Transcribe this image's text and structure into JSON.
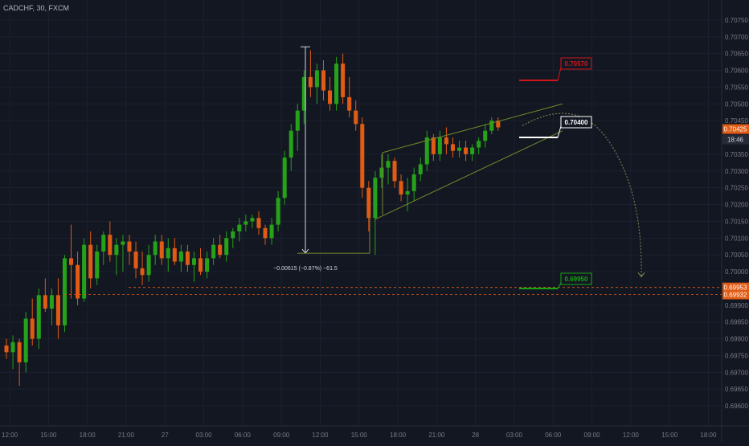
{
  "symbol_title": "CADCHF, 30, FXCM",
  "colors": {
    "background": "#131722",
    "grid": "#1c2030",
    "up": "#26a11a",
    "down": "#e05b14",
    "axis_text": "#787b86",
    "target_red": "#d1151c",
    "target_green": "#17a413",
    "pattern_line": "#6f8a2a"
  },
  "chart_data": {
    "type": "candlestick",
    "title": "CADCHF, 30, FXCM",
    "ylim": [
      0.6955,
      0.708
    ],
    "y_ticks": [
      {
        "value": 0.7075,
        "label": "0.70750"
      },
      {
        "value": 0.707,
        "label": "0.70700"
      },
      {
        "value": 0.7065,
        "label": "0.70650"
      },
      {
        "value": 0.706,
        "label": "0.70600"
      },
      {
        "value": 0.7055,
        "label": "0.70550"
      },
      {
        "value": 0.705,
        "label": "0.70500"
      },
      {
        "value": 0.7045,
        "label": "0.70450"
      },
      {
        "value": 0.7035,
        "label": "0.70350"
      },
      {
        "value": 0.703,
        "label": "0.70300"
      },
      {
        "value": 0.7025,
        "label": "0.70250"
      },
      {
        "value": 0.702,
        "label": "0.70200"
      },
      {
        "value": 0.7015,
        "label": "0.70150"
      },
      {
        "value": 0.701,
        "label": "0.70100"
      },
      {
        "value": 0.7005,
        "label": "0.70050"
      },
      {
        "value": 0.7,
        "label": "0.70000"
      },
      {
        "value": 0.699,
        "label": "0.69900"
      },
      {
        "value": 0.6985,
        "label": "0.69850"
      },
      {
        "value": 0.698,
        "label": "0.69800"
      },
      {
        "value": 0.6975,
        "label": "0.69750"
      },
      {
        "value": 0.697,
        "label": "0.69700"
      },
      {
        "value": 0.6965,
        "label": "0.69650"
      },
      {
        "value": 0.696,
        "label": "0.69600"
      }
    ],
    "x_ticks": [
      {
        "bar": 1,
        "label": "12:00"
      },
      {
        "bar": 7,
        "label": "15:00"
      },
      {
        "bar": 13,
        "label": "18:00"
      },
      {
        "bar": 19,
        "label": "21:00"
      },
      {
        "bar": 25,
        "label": "27"
      },
      {
        "bar": 31,
        "label": "03:00"
      },
      {
        "bar": 37,
        "label": "06:00"
      },
      {
        "bar": 43,
        "label": "09:00"
      },
      {
        "bar": 49,
        "label": "12:00"
      },
      {
        "bar": 55,
        "label": "15:00"
      },
      {
        "bar": 61,
        "label": "18:00"
      },
      {
        "bar": 67,
        "label": "21:00"
      },
      {
        "bar": 73,
        "label": "28"
      },
      {
        "bar": 79,
        "label": "03:00"
      },
      {
        "bar": 85,
        "label": "06:00"
      },
      {
        "bar": 91,
        "label": "09:00"
      },
      {
        "bar": 97,
        "label": "12:00"
      },
      {
        "bar": 103,
        "label": "15:00"
      },
      {
        "bar": 109,
        "label": "18:00"
      }
    ],
    "candles": [
      [
        0.6978,
        0.698,
        0.6974,
        0.6976
      ],
      [
        0.6976,
        0.6981,
        0.6971,
        0.6979
      ],
      [
        0.6979,
        0.698,
        0.6966,
        0.6973
      ],
      [
        0.6973,
        0.6988,
        0.697,
        0.6986
      ],
      [
        0.6986,
        0.6992,
        0.6978,
        0.698
      ],
      [
        0.698,
        0.6995,
        0.6977,
        0.6993
      ],
      [
        0.6993,
        0.6998,
        0.6988,
        0.6989
      ],
      [
        0.6989,
        0.6995,
        0.6984,
        0.6993
      ],
      [
        0.6993,
        0.6998,
        0.698,
        0.6984
      ],
      [
        0.6984,
        0.7005,
        0.6982,
        0.7004
      ],
      [
        0.7004,
        0.7014,
        0.6992,
        0.7002
      ],
      [
        0.7002,
        0.7006,
        0.699,
        0.6992
      ],
      [
        0.6992,
        0.701,
        0.6991,
        0.7008
      ],
      [
        0.7008,
        0.7012,
        0.6995,
        0.6998
      ],
      [
        0.6998,
        0.7008,
        0.6996,
        0.7006
      ],
      [
        0.7006,
        0.7012,
        0.7002,
        0.7011
      ],
      [
        0.7011,
        0.7015,
        0.7003,
        0.7005
      ],
      [
        0.7005,
        0.701,
        0.6999,
        0.7008
      ],
      [
        0.7008,
        0.7011,
        0.7,
        0.7009
      ],
      [
        0.7009,
        0.7011,
        0.7002,
        0.7006
      ],
      [
        0.7006,
        0.7009,
        0.6998,
        0.7001
      ],
      [
        0.7001,
        0.7006,
        0.6996,
        0.6999
      ],
      [
        0.6999,
        0.7008,
        0.6997,
        0.7005
      ],
      [
        0.7005,
        0.7011,
        0.7002,
        0.7009
      ],
      [
        0.7009,
        0.7011,
        0.7002,
        0.7004
      ],
      [
        0.7004,
        0.701,
        0.7,
        0.7007
      ],
      [
        0.7007,
        0.701,
        0.7002,
        0.7003
      ],
      [
        0.7003,
        0.7008,
        0.7,
        0.7006
      ],
      [
        0.7006,
        0.7008,
        0.7,
        0.7002
      ],
      [
        0.7002,
        0.7006,
        0.6997,
        0.7004
      ],
      [
        0.7004,
        0.7007,
        0.6999,
        0.7
      ],
      [
        0.7,
        0.7006,
        0.6998,
        0.7004
      ],
      [
        0.7004,
        0.701,
        0.7002,
        0.7008
      ],
      [
        0.7008,
        0.7011,
        0.7004,
        0.7005
      ],
      [
        0.7005,
        0.7012,
        0.7003,
        0.701
      ],
      [
        0.701,
        0.7013,
        0.7007,
        0.7012
      ],
      [
        0.7012,
        0.7016,
        0.7009,
        0.7014
      ],
      [
        0.7014,
        0.7017,
        0.7012,
        0.7015
      ],
      [
        0.7015,
        0.7017,
        0.7013,
        0.7016
      ],
      [
        0.7016,
        0.7018,
        0.7011,
        0.7013
      ],
      [
        0.7013,
        0.7014,
        0.7008,
        0.701
      ],
      [
        0.701,
        0.7016,
        0.7008,
        0.7014
      ],
      [
        0.7014,
        0.7024,
        0.7012,
        0.7022
      ],
      [
        0.7022,
        0.7036,
        0.702,
        0.7034
      ],
      [
        0.7034,
        0.7044,
        0.703,
        0.7042
      ],
      [
        0.7042,
        0.705,
        0.7036,
        0.7048
      ],
      [
        0.7048,
        0.706,
        0.7044,
        0.7058
      ],
      [
        0.7058,
        0.7066,
        0.7052,
        0.7055
      ],
      [
        0.7055,
        0.7062,
        0.705,
        0.706
      ],
      [
        0.706,
        0.7063,
        0.7051,
        0.7054
      ],
      [
        0.7054,
        0.7058,
        0.7048,
        0.705
      ],
      [
        0.705,
        0.7064,
        0.7048,
        0.7062
      ],
      [
        0.7062,
        0.7065,
        0.705,
        0.7052
      ],
      [
        0.7052,
        0.7058,
        0.7046,
        0.7048
      ],
      [
        0.7048,
        0.7051,
        0.7042,
        0.7044
      ],
      [
        0.7044,
        0.7046,
        0.7022,
        0.7025
      ],
      [
        0.7025,
        0.7027,
        0.7012,
        0.7016
      ],
      [
        0.7016,
        0.703,
        0.7005,
        0.7028
      ],
      [
        0.7028,
        0.7035,
        0.7025,
        0.7031
      ],
      [
        0.7031,
        0.7035,
        0.7026,
        0.7033
      ],
      [
        0.7033,
        0.7034,
        0.7025,
        0.7027
      ],
      [
        0.7027,
        0.7029,
        0.7021,
        0.7023
      ],
      [
        0.7023,
        0.7028,
        0.7018,
        0.7024
      ],
      [
        0.7024,
        0.7031,
        0.7021,
        0.7029
      ],
      [
        0.7029,
        0.7034,
        0.7027,
        0.7032
      ],
      [
        0.7032,
        0.7042,
        0.703,
        0.704
      ],
      [
        0.704,
        0.7041,
        0.7033,
        0.7035
      ],
      [
        0.7035,
        0.7042,
        0.7033,
        0.704
      ],
      [
        0.704,
        0.7043,
        0.7035,
        0.7038
      ],
      [
        0.7038,
        0.704,
        0.7034,
        0.7036
      ],
      [
        0.7036,
        0.7039,
        0.7034,
        0.7037
      ],
      [
        0.7037,
        0.7039,
        0.7033,
        0.7035
      ],
      [
        0.7035,
        0.7038,
        0.7033,
        0.7037
      ],
      [
        0.7037,
        0.704,
        0.7035,
        0.7039
      ],
      [
        0.7039,
        0.7044,
        0.7037,
        0.7042
      ],
      [
        0.7042,
        0.7046,
        0.7041,
        0.7045
      ],
      [
        0.7045,
        0.7046,
        0.7042,
        0.7043
      ]
    ],
    "candle_x_positions_note": "bars plotted sequentially; 30-minute bars",
    "annotations": {
      "measure_label": "−0.00615 (−0.87%) −61.5",
      "target_upper": "0.70570",
      "target_mid": "0.70400",
      "target_lower": "0.69950",
      "price_labels": [
        {
          "value": 0.70425,
          "text": "0.70425",
          "color": "#e05b14"
        },
        {
          "value": 0.69953,
          "text": "0.69953",
          "color": "#e05b14"
        },
        {
          "value": 0.69932,
          "text": "0.69932",
          "color": "#e05b14"
        }
      ],
      "countdown": "18:46"
    }
  }
}
